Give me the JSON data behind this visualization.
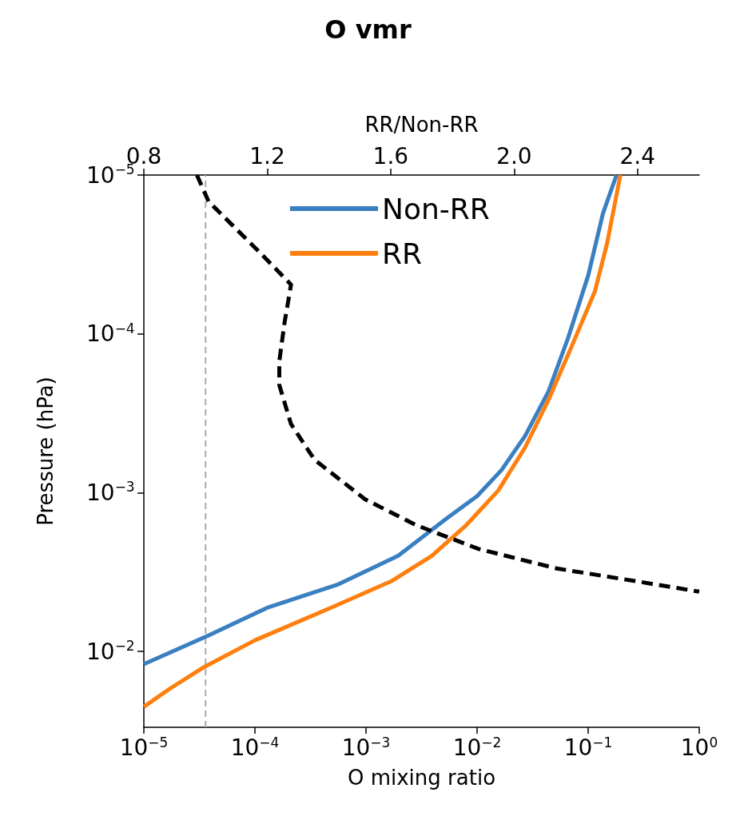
{
  "chart_data": {
    "type": "line",
    "title": "O vmr",
    "xlabel": "O mixing ratio",
    "ylabel": "Pressure (hPa)",
    "x2label": "RR/Non-RR",
    "log": "xy",
    "grid": false,
    "legend": "top",
    "marker": "none",
    "line_style": "solid",
    "xlim": [
      1e-05,
      1
    ],
    "xticks": [
      {
        "value": 1e-05,
        "label": "10$^{−5}$"
      },
      {
        "value": 0.0001,
        "label": "10$^{−4}$"
      },
      {
        "value": 0.001,
        "label": "10$^{−3}$"
      },
      {
        "value": 0.01,
        "label": "10$^{−2}$"
      },
      {
        "value": 0.1,
        "label": "10$^{−1}$"
      },
      {
        "value": 1,
        "label": "10$^{0}$"
      }
    ],
    "ylim": [
      0.03,
      1e-05
    ],
    "yticks": [
      {
        "value": 1e-05,
        "label": "10$^{−5}$"
      },
      {
        "value": 0.0001,
        "label": "10$^{−4}$"
      },
      {
        "value": 0.001,
        "label": "10$^{−3}$"
      },
      {
        "value": 0.01,
        "label": "10$^{−2}$"
      }
    ],
    "x2lim": [
      0.8,
      2.6
    ],
    "x2ticks": [
      {
        "value": 0.8,
        "label": "0.8"
      },
      {
        "value": 1.2,
        "label": "1.2"
      },
      {
        "value": 1.6,
        "label": "1.6"
      },
      {
        "value": 2.0,
        "label": "2.0"
      },
      {
        "value": 2.4,
        "label": "2.4"
      }
    ],
    "ref_lines": [
      {
        "axis": "x2",
        "value": 1.0,
        "color": "#aaaaaa",
        "line_style": "dashed"
      }
    ],
    "series": [
      {
        "name": "Non-RR",
        "color": "#3a7fc1",
        "x": [
          1e-05,
          3.7e-05,
          0.000129,
          0.00055,
          0.00194,
          0.0054,
          0.01,
          0.0166,
          0.027,
          0.044,
          0.066,
          0.1,
          0.136,
          0.18
        ],
        "values": [
          0.012,
          0.008,
          0.0053,
          0.0038,
          0.0025,
          0.00144,
          0.00105,
          0.00072,
          0.00044,
          0.00023,
          0.000106,
          4.3e-05,
          1.74e-05,
          1e-05
        ]
      },
      {
        "name": "RR",
        "color": "#ff7f0e",
        "x": [
          1e-05,
          1.7e-05,
          3.5e-05,
          0.0001,
          0.00055,
          0.0017,
          0.0039,
          0.008,
          0.0155,
          0.027,
          0.044,
          0.071,
          0.115,
          0.148,
          0.195
        ],
        "values": [
          0.0223,
          0.0172,
          0.0125,
          0.0085,
          0.0051,
          0.0036,
          0.0025,
          0.0016,
          0.00097,
          0.00052,
          0.00026,
          0.00012,
          5.4e-05,
          2.7e-05,
          1e-05
        ]
      },
      {
        "color": "#000000",
        "axis": "x2",
        "line_style": "dashed",
        "x": [
          0.972,
          1.01,
          1.086,
          1.175,
          1.277,
          1.256,
          1.239,
          1.239,
          1.277,
          1.353,
          1.517,
          1.682,
          1.885,
          2.138,
          2.392,
          2.6
        ],
        "values": [
          1e-05,
          1.47e-05,
          2.06e-05,
          3.06e-05,
          4.9e-05,
          8.5e-05,
          0.000149,
          0.00021,
          0.00037,
          0.00062,
          0.0011,
          0.0016,
          0.00226,
          0.003,
          0.0036,
          0.0042
        ]
      }
    ]
  }
}
